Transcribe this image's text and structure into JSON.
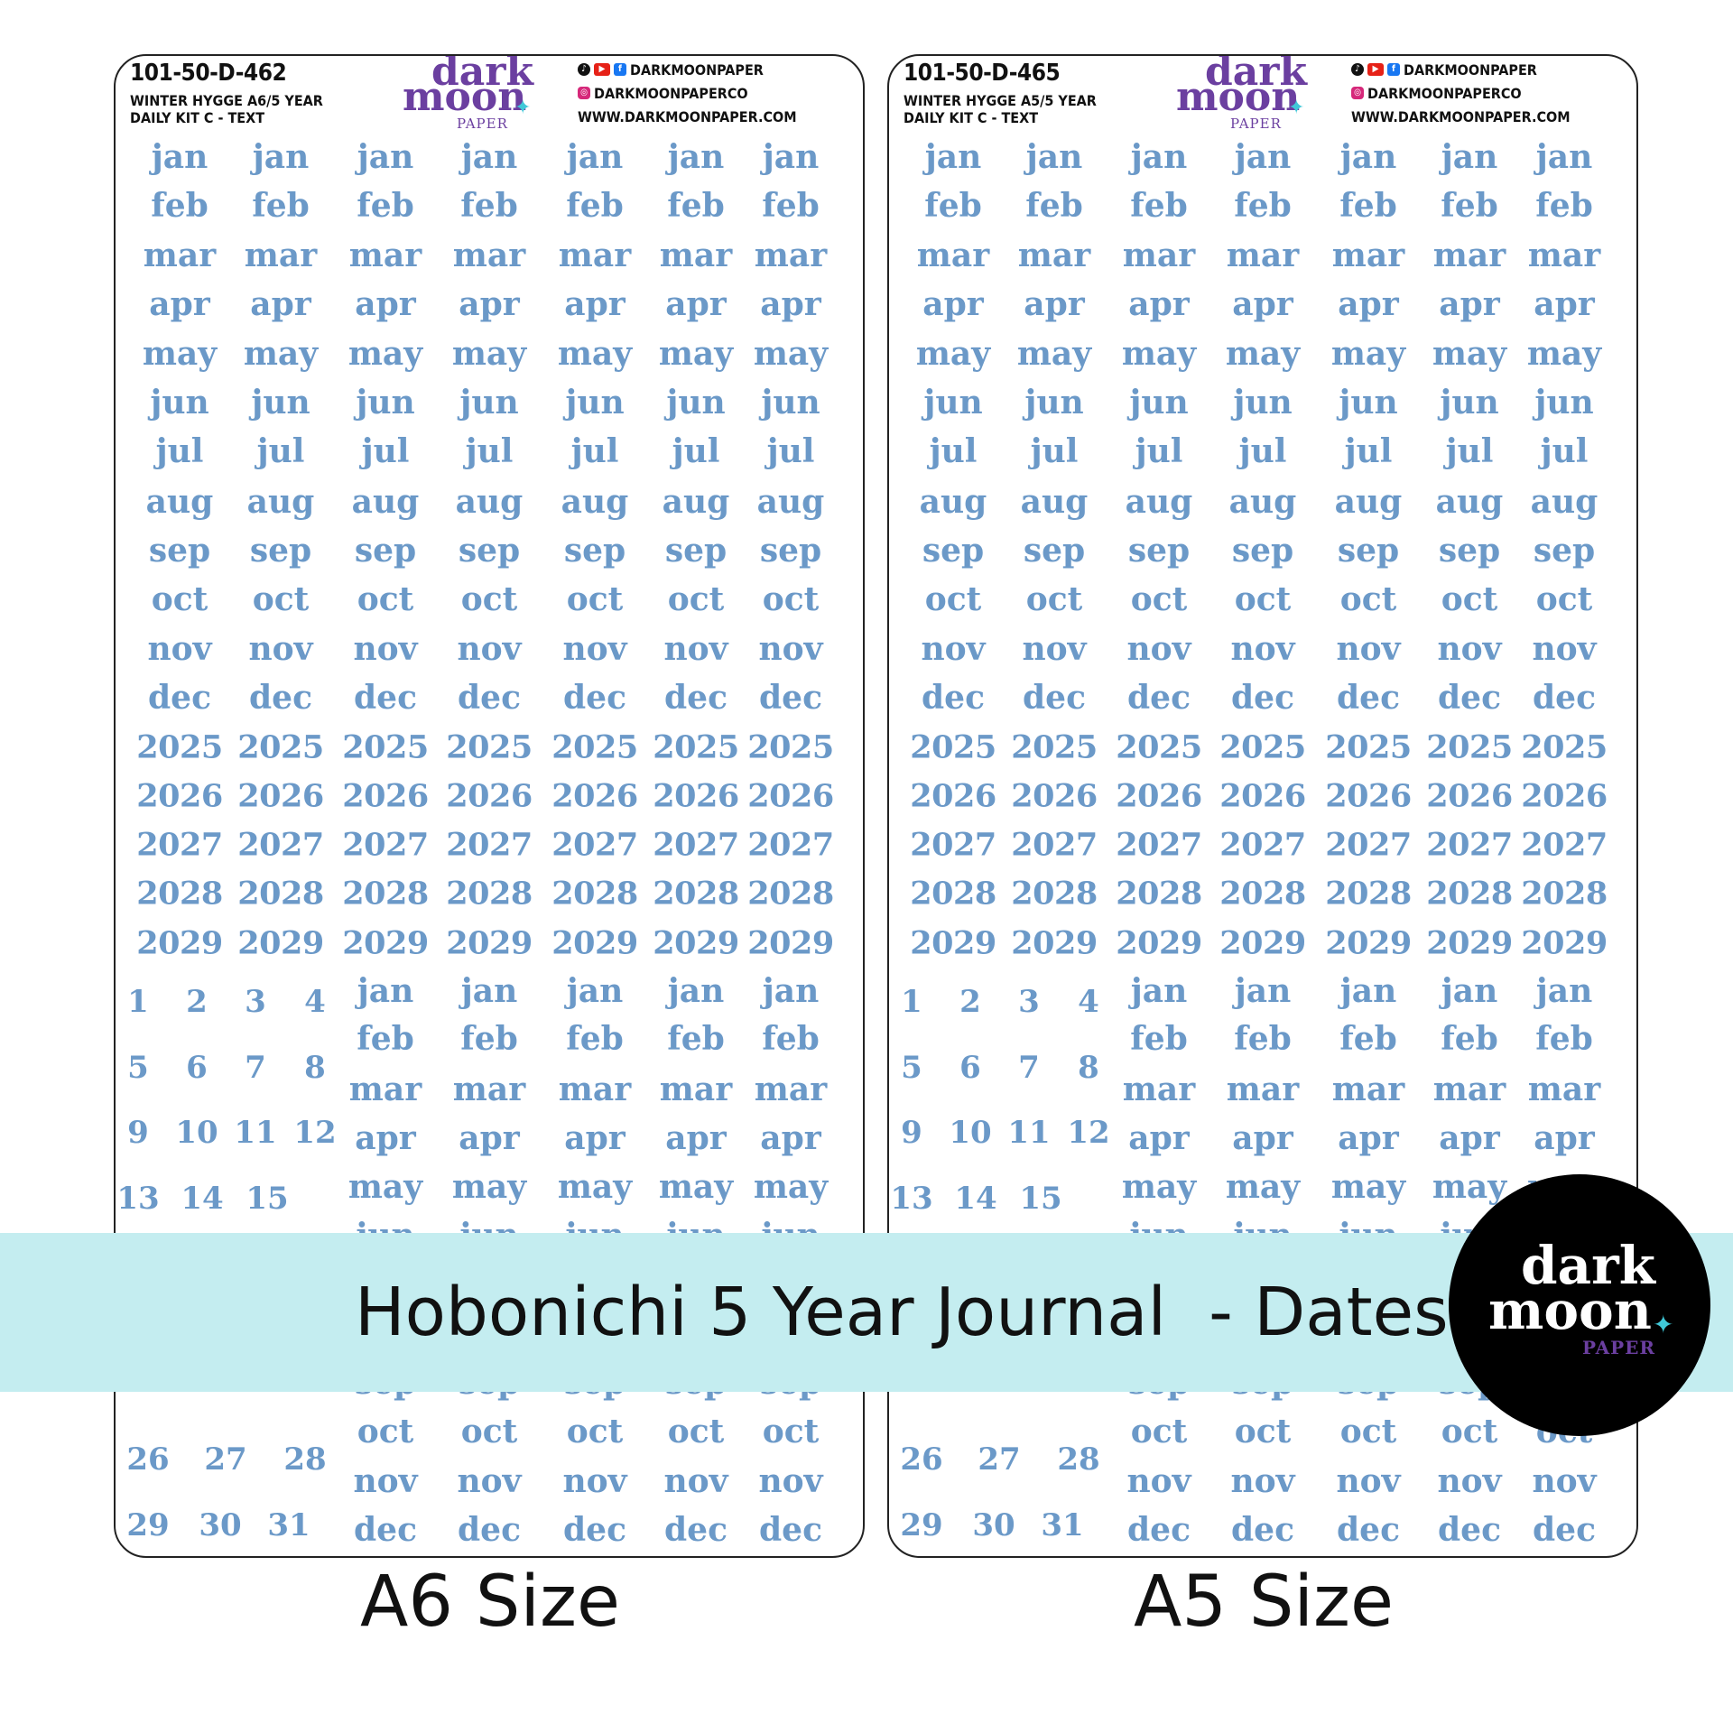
{
  "brand": {
    "logo_line1": "dark",
    "logo_line2": "moon",
    "logo_line3": "PAPER",
    "accent_color": "#6b3fa0",
    "text_color": "#6b99c8",
    "spark_color": "#40c8d8"
  },
  "sheets": [
    {
      "code": "101-50-D-462",
      "subtitle_line1": "WINTER HYGGE A6/5 YEAR",
      "subtitle_line2": "DAILY KIT C - TEXT",
      "social_handle": "DARKMOONPAPER",
      "instagram": "DARKMOONPAPERCO",
      "website": "WWW.DARKMOONPAPER.COM",
      "size_label": "A6 Size"
    },
    {
      "code": "101-50-D-465",
      "subtitle_line1": "WINTER HYGGE A5/5 YEAR",
      "subtitle_line2": "DAILY KIT C - TEXT",
      "social_handle": "DARKMOONPAPER",
      "instagram": "DARKMOONPAPERCO",
      "website": "WWW.DARKMOONPAPER.COM",
      "size_label": "A5 Size"
    }
  ],
  "months": [
    "jan",
    "feb",
    "mar",
    "apr",
    "may",
    "jun",
    "jul",
    "aug",
    "sep",
    "oct",
    "nov",
    "dec"
  ],
  "years": [
    "2025",
    "2026",
    "2027",
    "2028",
    "2029"
  ],
  "days_visible": [
    "1",
    "2",
    "3",
    "4",
    "5",
    "6",
    "7",
    "8",
    "9",
    "10",
    "11",
    "12",
    "13",
    "14",
    "15",
    "26",
    "27",
    "28",
    "29",
    "30",
    "31"
  ],
  "banner": {
    "title": "Hobonichi 5 Year Journal  - Dates",
    "background": "#c4edf0"
  }
}
